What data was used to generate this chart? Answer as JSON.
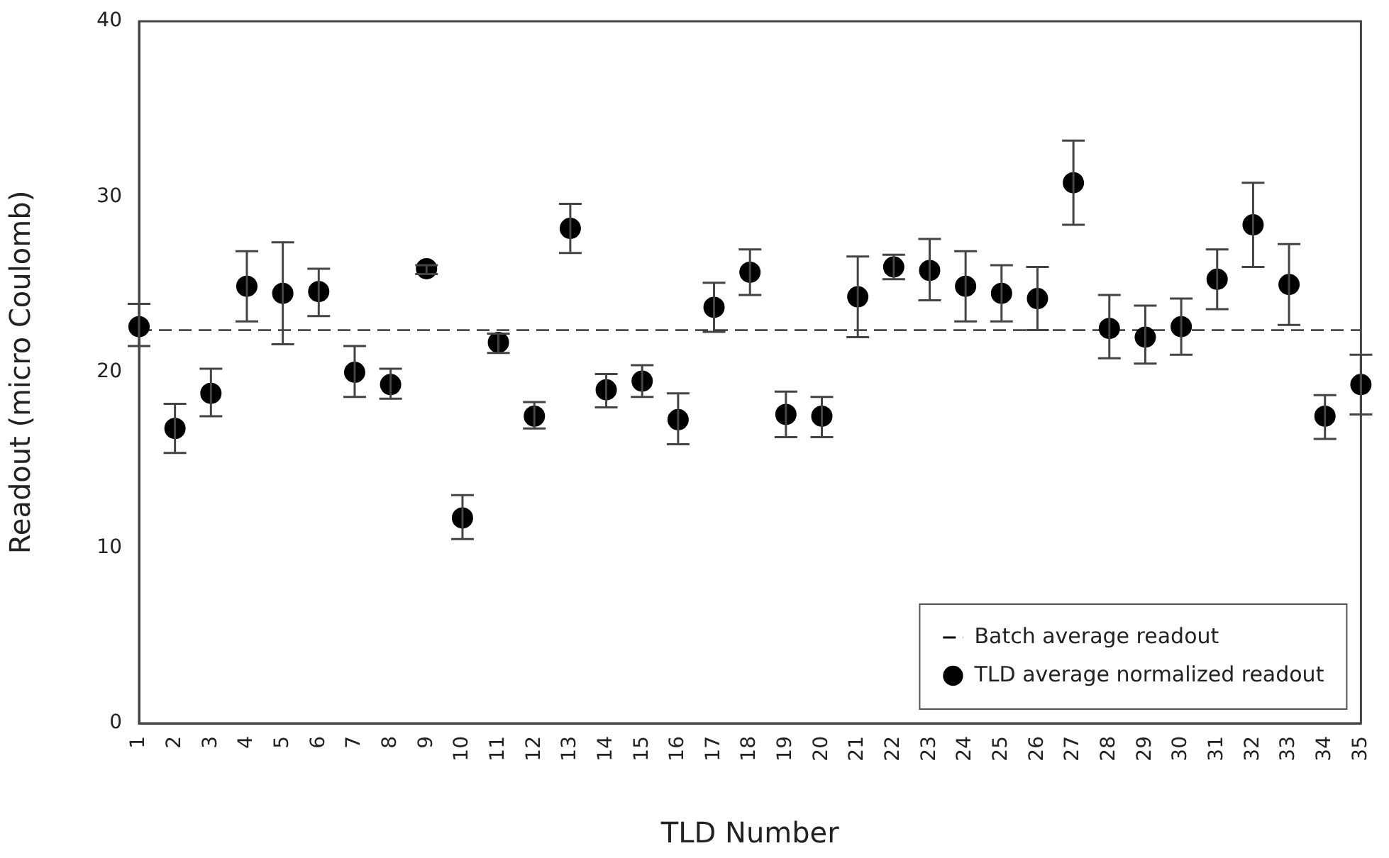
{
  "chart_data": {
    "type": "scatter",
    "xlabel": "TLD Number",
    "ylabel": "Readout (micro Coulomb)",
    "categories": [
      "1",
      "2",
      "3",
      "4",
      "5",
      "6",
      "7",
      "8",
      "9",
      "10",
      "11",
      "12",
      "13",
      "14",
      "15",
      "16",
      "17",
      "18",
      "19",
      "20",
      "21",
      "22",
      "23",
      "24",
      "25",
      "26",
      "27",
      "28",
      "29",
      "30",
      "31",
      "32",
      "33",
      "34",
      "35"
    ],
    "series": [
      {
        "name": "TLD average normalized readout",
        "color": "#000000",
        "values": [
          22.6,
          16.8,
          18.8,
          24.9,
          24.5,
          24.6,
          20.0,
          19.3,
          25.9,
          11.7,
          21.7,
          17.5,
          28.2,
          19.0,
          19.5,
          17.3,
          23.7,
          25.7,
          17.6,
          17.5,
          24.3,
          26.0,
          25.8,
          24.9,
          24.5,
          24.2,
          30.8,
          22.5,
          22.0,
          22.6,
          25.3,
          28.4,
          25.0,
          17.5,
          19.3
        ],
        "errors": [
          [
            21.5,
            23.9
          ],
          [
            15.4,
            18.2
          ],
          [
            17.5,
            20.2
          ],
          [
            22.9,
            26.9
          ],
          [
            21.6,
            27.4
          ],
          [
            23.2,
            25.9
          ],
          [
            18.6,
            21.5
          ],
          [
            18.5,
            20.2
          ],
          [
            25.6,
            26.1
          ],
          [
            10.5,
            13.0
          ],
          [
            21.1,
            22.2
          ],
          [
            16.8,
            18.3
          ],
          [
            26.8,
            29.6
          ],
          [
            18.0,
            19.9
          ],
          [
            18.6,
            20.4
          ],
          [
            15.9,
            18.8
          ],
          [
            22.3,
            25.1
          ],
          [
            24.4,
            27.0
          ],
          [
            16.3,
            18.9
          ],
          [
            16.3,
            18.6
          ],
          [
            22.0,
            26.6
          ],
          [
            25.3,
            26.7
          ],
          [
            24.1,
            27.6
          ],
          [
            22.9,
            26.9
          ],
          [
            22.9,
            26.1
          ],
          [
            22.4,
            26.0
          ],
          [
            28.4,
            33.2
          ],
          [
            20.8,
            24.4
          ],
          [
            20.5,
            23.8
          ],
          [
            21.0,
            24.2
          ],
          [
            23.6,
            27.0
          ],
          [
            26.0,
            30.8
          ],
          [
            22.7,
            27.3
          ],
          [
            16.2,
            18.7
          ],
          [
            17.6,
            21.0
          ]
        ]
      }
    ],
    "ref_lines": [
      {
        "axis": "y",
        "value": 22.4,
        "label": "Batch average readout",
        "color": "#000000",
        "line_style": "dashed"
      }
    ],
    "ylim": [
      0,
      40
    ],
    "yticks": [
      0,
      10,
      20,
      30,
      40
    ],
    "grid": false,
    "legend": "bottom right",
    "marker": "circle"
  }
}
